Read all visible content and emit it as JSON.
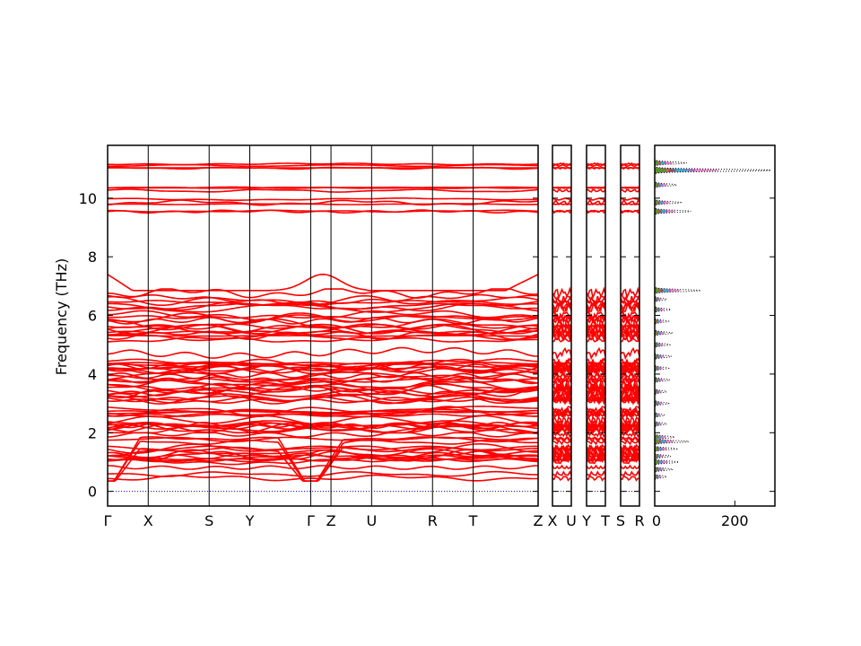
{
  "chart_data": {
    "type": "line",
    "ylabel": "Frequency (THz)",
    "ylim": [
      -0.5,
      11.8
    ],
    "yticks": [
      0,
      2,
      4,
      6,
      8,
      10
    ],
    "segments": [
      {
        "labels": [
          "Γ",
          "X",
          "S",
          "Y",
          "Γ",
          "Z",
          "U",
          "R",
          "T",
          "Z"
        ],
        "kpos": [
          0,
          1,
          2.5,
          3.5,
          5,
          5.5,
          6.5,
          8,
          9,
          10.6
        ]
      },
      {
        "labels": [
          "X",
          "U"
        ],
        "kpos": [
          0,
          1
        ]
      },
      {
        "labels": [
          "Y",
          "T"
        ],
        "kpos": [
          0,
          1
        ]
      },
      {
        "labels": [
          "S",
          "R"
        ],
        "kpos": [
          0,
          1
        ]
      }
    ],
    "dos": {
      "xlim": [
        0,
        300
      ],
      "xticks": [
        0,
        200
      ],
      "peaks": [
        {
          "f": 0.5,
          "v": 30
        },
        {
          "f": 0.75,
          "v": 45
        },
        {
          "f": 1.0,
          "v": 60
        },
        {
          "f": 1.2,
          "v": 40
        },
        {
          "f": 1.45,
          "v": 55
        },
        {
          "f": 1.7,
          "v": 85
        },
        {
          "f": 1.85,
          "v": 50
        },
        {
          "f": 2.3,
          "v": 30
        },
        {
          "f": 2.6,
          "v": 25
        },
        {
          "f": 3.0,
          "v": 35
        },
        {
          "f": 3.4,
          "v": 30
        },
        {
          "f": 3.8,
          "v": 38
        },
        {
          "f": 4.2,
          "v": 35
        },
        {
          "f": 4.6,
          "v": 42
        },
        {
          "f": 5.0,
          "v": 38
        },
        {
          "f": 5.4,
          "v": 45
        },
        {
          "f": 5.8,
          "v": 35
        },
        {
          "f": 6.2,
          "v": 40
        },
        {
          "f": 6.55,
          "v": 30
        },
        {
          "f": 6.85,
          "v": 115
        },
        {
          "f": 9.55,
          "v": 90
        },
        {
          "f": 9.85,
          "v": 65
        },
        {
          "f": 10.45,
          "v": 55
        },
        {
          "f": 10.95,
          "v": 290
        },
        {
          "f": 11.2,
          "v": 80
        }
      ]
    }
  }
}
